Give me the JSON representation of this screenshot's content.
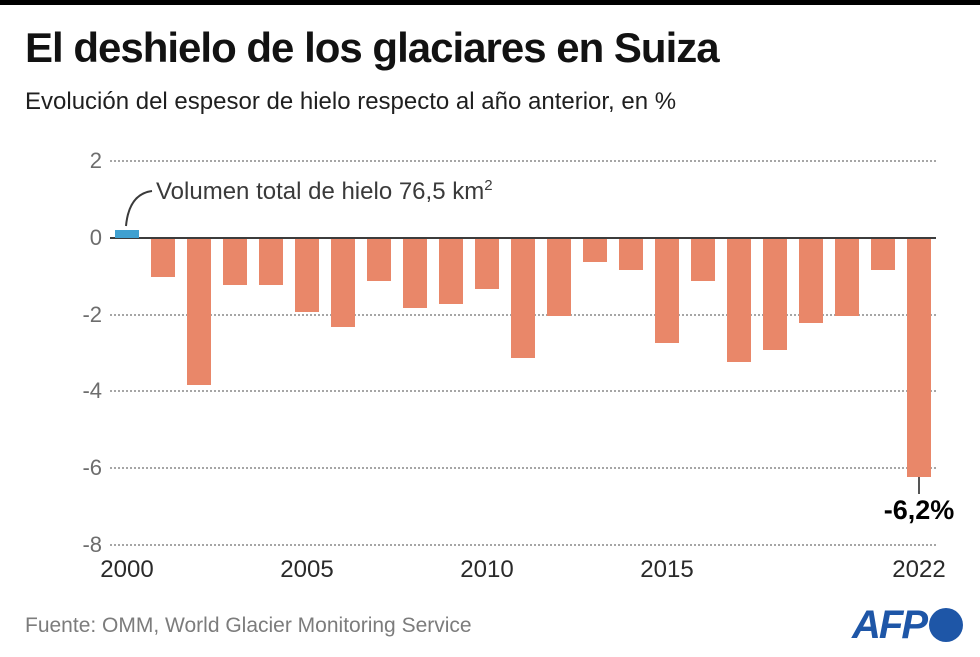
{
  "header": {
    "title": "El deshielo de los glaciares en Suiza",
    "subtitle": "Evolución del espesor de hielo respecto al año anterior, en %"
  },
  "chart_data": {
    "type": "bar",
    "title": "El deshielo de los glaciares en Suiza",
    "subtitle": "Evolución del espesor de hielo respecto al año anterior, en %",
    "xlabel": "",
    "ylabel": "%",
    "x": [
      2000,
      2001,
      2002,
      2003,
      2004,
      2005,
      2006,
      2007,
      2008,
      2009,
      2010,
      2011,
      2012,
      2013,
      2014,
      2015,
      2016,
      2017,
      2018,
      2019,
      2020,
      2021,
      2022
    ],
    "values": [
      0.2,
      -1.0,
      -3.8,
      -1.2,
      -1.2,
      -1.9,
      -2.3,
      -1.1,
      -1.8,
      -1.7,
      -1.3,
      -3.1,
      -2.0,
      -0.6,
      -0.8,
      -2.7,
      -1.1,
      -3.2,
      -2.9,
      -2.2,
      -2.0,
      -0.8,
      -6.2
    ],
    "ylim": [
      -8,
      2
    ],
    "yticks": [
      2,
      0,
      -2,
      -4,
      -6,
      -8
    ],
    "xtick_labels": [
      "2000",
      "2005",
      "2010",
      "2015",
      "2022"
    ],
    "xtick_years": [
      2000,
      2005,
      2010,
      2015,
      2022
    ],
    "grid": "horizontal-dotted",
    "legend": "none",
    "bar_color": "#e98769",
    "highlight_year": 2000,
    "highlight_color": "#3fa0d0",
    "annotation": {
      "text": "Volumen total de hielo 76,5 km",
      "superscript": "2",
      "points_to_year": 2000
    },
    "value_label": {
      "text": "-6,2%",
      "year": 2022
    }
  },
  "footer": {
    "source": "Fuente: OMM, World Glacier Monitoring Service",
    "logo_text": "AFP"
  },
  "colors": {
    "bar": "#e98769",
    "highlight_bar": "#3fa0d0",
    "afp_blue": "#1e56a7",
    "top_bar": "#000000",
    "zero_line": "#3c3c3c",
    "gridline": "#a6a6a6"
  }
}
